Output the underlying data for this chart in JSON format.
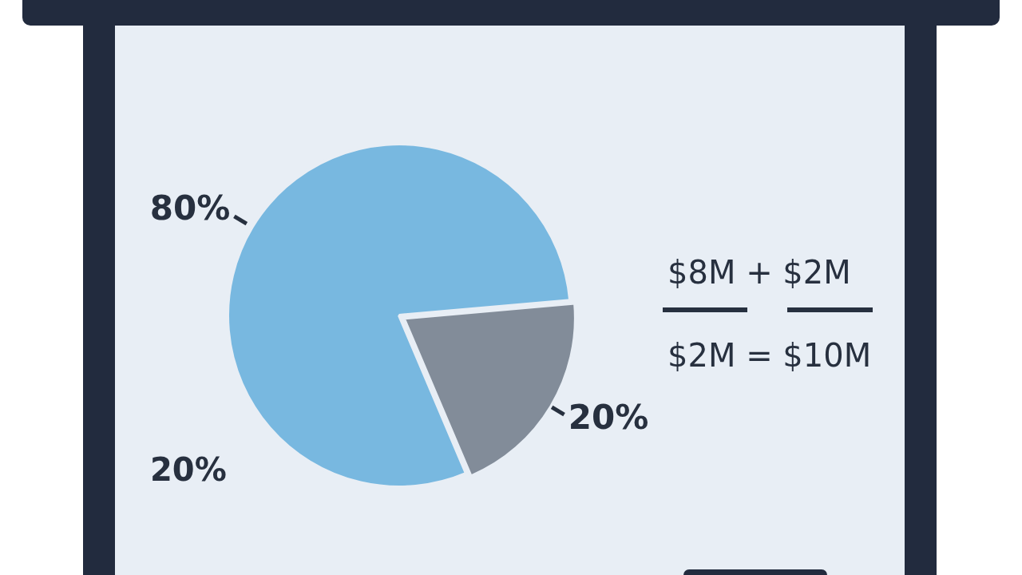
{
  "chart_data": {
    "type": "pie",
    "categories": [
      null,
      null
    ],
    "values": [
      80,
      20
    ],
    "colors": [
      "#78b8e0",
      "#828c99"
    ],
    "value_labels": [
      "80%",
      "20%"
    ],
    "annotations": [
      "20%",
      "$8M + $2M",
      "$2M = $10M"
    ]
  }
}
